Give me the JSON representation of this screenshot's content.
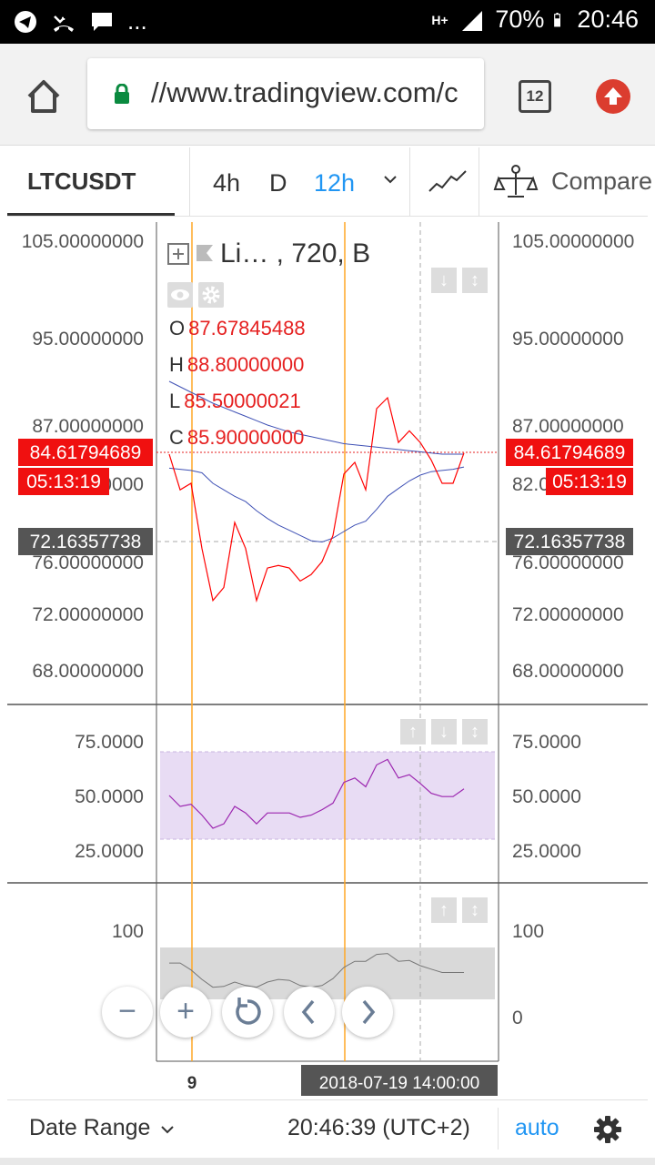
{
  "status_bar": {
    "left_more": "...",
    "network_label": "H+",
    "battery": "70%",
    "time": "20:46"
  },
  "browser": {
    "url": "//www.tradingview.com/c",
    "tab_count": "12",
    "home_icon": "home-icon",
    "lock_icon": "lock-icon",
    "update_icon": "update-arrow-icon"
  },
  "toolbar": {
    "symbol": "LTCUSDT",
    "intervals": [
      "4h",
      "D",
      "12h"
    ],
    "active_interval": "12h",
    "compare_label": "Compare"
  },
  "legend": {
    "title": "Li… , 720, B",
    "rows": [
      {
        "label": "O",
        "value": "87.67845488"
      },
      {
        "label": "H",
        "value": "88.80000000"
      },
      {
        "label": "L",
        "value": "85.50000021"
      },
      {
        "label": "C",
        "value": "85.90000000"
      }
    ]
  },
  "price_tags": {
    "current_price": "84.61794689",
    "countdown": "05:13:19",
    "crosshair_price": "72.16357738"
  },
  "crosshair_date": "2018-07-19 14:00:00",
  "x_tick": "9",
  "bottom_bar": {
    "date_range_label": "Date Range",
    "time": "20:46:39 (UTC+2)",
    "auto_label": "auto"
  },
  "colors": {
    "price_line": "#ff0000",
    "ma_line": "#3f51b5",
    "rsi_line": "#9c27b0",
    "rsi_band": "#e8dcf4",
    "accent": "#2196f3",
    "vertical_marker": "#ffa726"
  },
  "chart_data": [
    {
      "type": "line",
      "pane": "price",
      "y_ticks_left": [
        "105.00000000",
        "95.00000000",
        "87.00000000",
        "82.00000000",
        "76.00000000",
        "72.00000000",
        "68.00000000"
      ],
      "y_ticks_right": [
        "105.00000000",
        "95.00000000",
        "87.00000000",
        "82.00000000",
        "76.00000000",
        "72.00000000",
        "68.00000000"
      ],
      "ylim": [
        68,
        105
      ],
      "series": [
        {
          "values": [
            84.5,
            81.5,
            82,
            77,
            73,
            74,
            79,
            77,
            73,
            75.5,
            75.7,
            75.5,
            74.5,
            75,
            76,
            78,
            82.8,
            83.8,
            81.5,
            88.5,
            89.5,
            85.5,
            86.5,
            85.5,
            84,
            82,
            82,
            84.6
          ]
        },
        {
          "values": [
            91,
            90.5,
            90,
            89.5,
            89,
            88.6,
            88.2,
            87.8,
            87.4,
            87,
            86.7,
            86.4,
            86.2,
            86,
            85.8,
            85.6,
            85.4,
            85.3,
            85.2,
            85.1,
            85,
            84.9,
            84.8,
            84.7,
            84.6,
            84.5,
            84.5,
            84.5
          ]
        },
        {
          "values": [
            83.3,
            83.2,
            83.1,
            82.9,
            82,
            81.5,
            81,
            80.6,
            79.9,
            79.3,
            78.8,
            78.4,
            78,
            77.6,
            77.5,
            77.8,
            78.3,
            78.8,
            79.1,
            80,
            81,
            81.6,
            82.2,
            82.7,
            83,
            83.1,
            83.2,
            83.4
          ]
        }
      ]
    },
    {
      "type": "line",
      "pane": "rsi",
      "y_ticks": [
        "75.0000",
        "50.0000",
        "25.0000"
      ],
      "ylim": [
        20,
        80
      ],
      "band": [
        30,
        70
      ],
      "series": [
        {
          "values": [
            50,
            45,
            46,
            41,
            35,
            37,
            45,
            42,
            37,
            42,
            42,
            42,
            40,
            41,
            43.5,
            46.5,
            56,
            58,
            54,
            64,
            66.5,
            58,
            59.5,
            55.5,
            51,
            49.5,
            49.5,
            53
          ]
        }
      ]
    },
    {
      "type": "area",
      "pane": "oscillator",
      "y_ticks": [
        "100",
        "0"
      ],
      "ylim": [
        -20,
        120
      ],
      "band": [
        20,
        80
      ],
      "series": [
        {
          "values": [
            62,
            62,
            54,
            43,
            34,
            35,
            40,
            36,
            34,
            40,
            43,
            42,
            36,
            34,
            36,
            44,
            57,
            64,
            64,
            72,
            73,
            64,
            65,
            59,
            55,
            51,
            51,
            51
          ]
        }
      ]
    }
  ]
}
